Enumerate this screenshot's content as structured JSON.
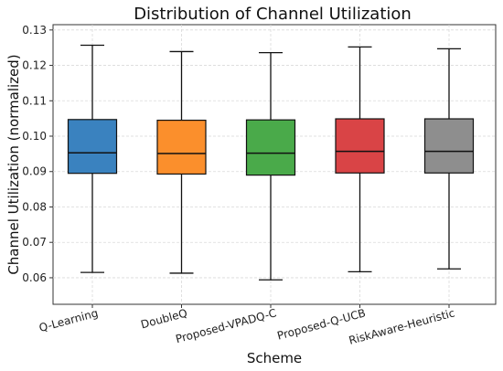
{
  "chart_data": {
    "type": "box",
    "title": "Distribution of Channel Utilization",
    "xlabel": "Scheme",
    "ylabel": "Channel Utilization (normalized)",
    "ylim": [
      0.0525,
      0.1315
    ],
    "yticks": [
      0.06,
      0.07,
      0.08,
      0.09,
      0.1,
      0.11,
      0.12,
      0.13
    ],
    "ytick_labels": [
      "0.06",
      "0.07",
      "0.08",
      "0.09",
      "0.10",
      "0.11",
      "0.12",
      "0.13"
    ],
    "grid": true,
    "categories": [
      "Q-Learning",
      "DoubleQ",
      "Proposed-VPADQ-C",
      "Proposed-Q-UCB",
      "RiskAware-Heuristic"
    ],
    "series": [
      {
        "min": 0.0615,
        "q1": 0.0895,
        "median": 0.0953,
        "q3": 0.1047,
        "max": 0.1257,
        "color": "#3a82bf"
      },
      {
        "min": 0.0613,
        "q1": 0.0893,
        "median": 0.0951,
        "q3": 0.1045,
        "max": 0.1239,
        "color": "#fb8f2c"
      },
      {
        "min": 0.0594,
        "q1": 0.089,
        "median": 0.0952,
        "q3": 0.1046,
        "max": 0.1236,
        "color": "#4aaa4a"
      },
      {
        "min": 0.0617,
        "q1": 0.0896,
        "median": 0.0957,
        "q3": 0.1049,
        "max": 0.1252,
        "color": "#d94446"
      },
      {
        "min": 0.0625,
        "q1": 0.0896,
        "median": 0.0957,
        "q3": 0.1049,
        "max": 0.1247,
        "color": "#8e8e8e"
      }
    ]
  }
}
